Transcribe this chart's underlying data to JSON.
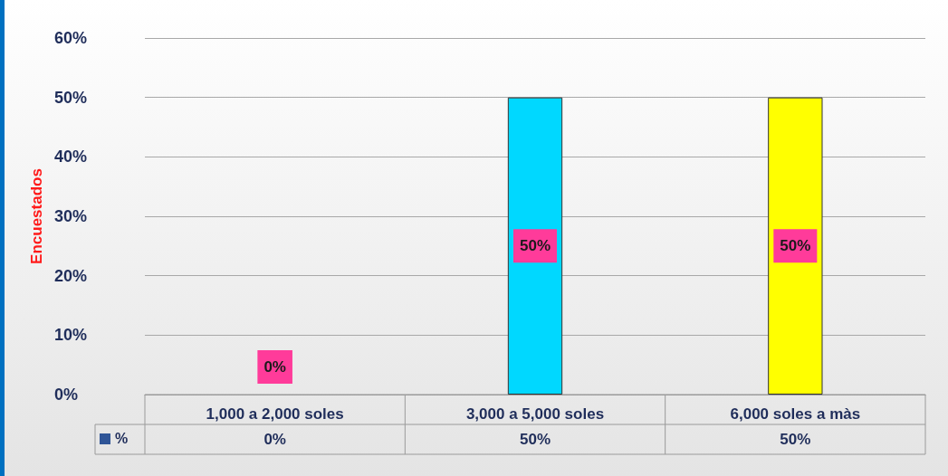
{
  "chart_data": {
    "type": "bar",
    "ylabel": "Encuestados",
    "categories": [
      "1,000 a 2,000 soles",
      "3,000 a 5,000 soles",
      "6,000 soles a màs"
    ],
    "series": [
      {
        "name": "%",
        "color": "#2f5597",
        "values": [
          0,
          50,
          50
        ],
        "colors": [
          "#1f4e9c",
          "#00d8ff",
          "#ffff00"
        ],
        "value_labels": [
          "0%",
          "50%",
          "50%"
        ]
      }
    ],
    "ylim": [
      0,
      60
    ],
    "yticks": [
      {
        "value": 0,
        "label": "0%"
      },
      {
        "value": 10,
        "label": "10%"
      },
      {
        "value": 20,
        "label": "20%"
      },
      {
        "value": 30,
        "label": "30%"
      },
      {
        "value": 40,
        "label": "40%"
      },
      {
        "value": 50,
        "label": "50%"
      },
      {
        "value": 60,
        "label": "60%"
      }
    ],
    "grid": "y",
    "legend": "bottom left"
  }
}
